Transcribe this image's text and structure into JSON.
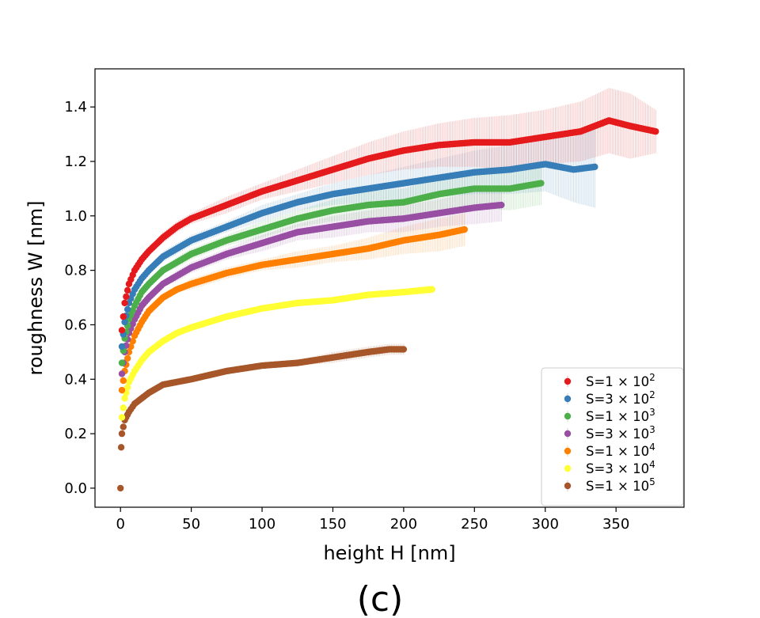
{
  "caption": "(c)",
  "chart_data": {
    "type": "scatter",
    "xlabel": "height H [nm]",
    "ylabel": "roughness W [nm]",
    "xlim": [
      -18,
      398
    ],
    "ylim": [
      -0.07,
      1.54
    ],
    "xticks": [
      0,
      50,
      100,
      150,
      200,
      250,
      300,
      350
    ],
    "yticks": [
      0.0,
      0.2,
      0.4,
      0.6,
      0.8,
      1.0,
      1.2,
      1.4
    ],
    "ytick_labels": [
      "0.0",
      "0.2",
      "0.4",
      "0.6",
      "0.8",
      "1.0",
      "1.2",
      "1.4"
    ],
    "grid": false,
    "error_bars": true,
    "legend_position": "lower right",
    "origin_point": [
      0,
      0.0
    ],
    "series": [
      {
        "name": "S=1×10²",
        "legend_base": "S=1",
        "legend_exp": "2",
        "color": "#e41a1c",
        "x": [
          1,
          3,
          6,
          10,
          15,
          20,
          30,
          40,
          50,
          75,
          100,
          125,
          150,
          175,
          200,
          225,
          250,
          275,
          300,
          325,
          345,
          360,
          378
        ],
        "y": [
          0.58,
          0.68,
          0.75,
          0.8,
          0.84,
          0.87,
          0.92,
          0.96,
          0.99,
          1.04,
          1.09,
          1.13,
          1.17,
          1.21,
          1.24,
          1.26,
          1.27,
          1.27,
          1.29,
          1.31,
          1.35,
          1.33,
          1.31
        ],
        "err": [
          0.01,
          0.01,
          0.01,
          0.01,
          0.01,
          0.01,
          0.02,
          0.02,
          0.02,
          0.03,
          0.03,
          0.04,
          0.05,
          0.06,
          0.07,
          0.08,
          0.09,
          0.1,
          0.1,
          0.11,
          0.12,
          0.12,
          0.08
        ]
      },
      {
        "name": "S=3×10²",
        "legend_base": "S=3",
        "legend_exp": "2",
        "color": "#377eb8",
        "x": [
          1,
          3,
          6,
          10,
          15,
          20,
          30,
          40,
          50,
          75,
          100,
          125,
          150,
          175,
          200,
          225,
          250,
          275,
          300,
          320,
          335
        ],
        "y": [
          0.52,
          0.61,
          0.68,
          0.73,
          0.77,
          0.8,
          0.85,
          0.88,
          0.91,
          0.96,
          1.01,
          1.05,
          1.08,
          1.1,
          1.12,
          1.14,
          1.16,
          1.17,
          1.19,
          1.17,
          1.18
        ],
        "err": [
          0.01,
          0.01,
          0.01,
          0.01,
          0.01,
          0.01,
          0.02,
          0.02,
          0.02,
          0.02,
          0.03,
          0.03,
          0.04,
          0.05,
          0.06,
          0.07,
          0.08,
          0.09,
          0.1,
          0.12,
          0.15
        ]
      },
      {
        "name": "S=1×10³",
        "legend_base": "S=1",
        "legend_exp": "3",
        "color": "#4daf4a",
        "x": [
          1,
          3,
          6,
          10,
          15,
          20,
          30,
          40,
          50,
          75,
          100,
          125,
          150,
          175,
          200,
          225,
          250,
          275,
          297
        ],
        "y": [
          0.46,
          0.55,
          0.62,
          0.67,
          0.72,
          0.75,
          0.8,
          0.83,
          0.86,
          0.91,
          0.95,
          0.99,
          1.02,
          1.04,
          1.05,
          1.08,
          1.1,
          1.1,
          1.12
        ],
        "err": [
          0.01,
          0.01,
          0.01,
          0.01,
          0.01,
          0.01,
          0.01,
          0.02,
          0.02,
          0.02,
          0.03,
          0.03,
          0.04,
          0.05,
          0.05,
          0.06,
          0.07,
          0.08,
          0.08
        ]
      },
      {
        "name": "S=3×10³",
        "legend_base": "S=3",
        "legend_exp": "3",
        "color": "#984ea3",
        "x": [
          1,
          3,
          6,
          10,
          15,
          20,
          30,
          40,
          50,
          75,
          100,
          125,
          150,
          175,
          200,
          225,
          250,
          269
        ],
        "y": [
          0.42,
          0.5,
          0.57,
          0.62,
          0.67,
          0.7,
          0.75,
          0.78,
          0.81,
          0.86,
          0.9,
          0.94,
          0.96,
          0.98,
          0.99,
          1.01,
          1.03,
          1.04
        ],
        "err": [
          0.01,
          0.01,
          0.01,
          0.01,
          0.01,
          0.01,
          0.01,
          0.02,
          0.02,
          0.02,
          0.03,
          0.03,
          0.04,
          0.04,
          0.05,
          0.05,
          0.06,
          0.06
        ]
      },
      {
        "name": "S=1×10⁴",
        "legend_base": "S=1",
        "legend_exp": "4",
        "color": "#ff7f00",
        "x": [
          1,
          3,
          6,
          10,
          15,
          20,
          30,
          40,
          50,
          75,
          100,
          125,
          150,
          175,
          200,
          225,
          243
        ],
        "y": [
          0.36,
          0.43,
          0.5,
          0.56,
          0.61,
          0.65,
          0.7,
          0.73,
          0.75,
          0.79,
          0.82,
          0.84,
          0.86,
          0.88,
          0.91,
          0.93,
          0.95
        ],
        "err": [
          0.01,
          0.01,
          0.01,
          0.01,
          0.01,
          0.01,
          0.01,
          0.01,
          0.02,
          0.02,
          0.02,
          0.03,
          0.03,
          0.04,
          0.05,
          0.06,
          0.06
        ]
      },
      {
        "name": "S=3×10⁴",
        "legend_base": "S=3",
        "legend_exp": "4",
        "color": "#ffff33",
        "x": [
          1,
          3,
          6,
          10,
          15,
          20,
          30,
          40,
          50,
          75,
          100,
          125,
          150,
          175,
          200,
          220
        ],
        "y": [
          0.26,
          0.33,
          0.39,
          0.43,
          0.47,
          0.5,
          0.54,
          0.57,
          0.59,
          0.63,
          0.66,
          0.68,
          0.69,
          0.71,
          0.72,
          0.73
        ],
        "err": [
          0.005,
          0.005,
          0.01,
          0.01,
          0.01,
          0.01,
          0.01,
          0.01,
          0.01,
          0.01,
          0.01,
          0.01,
          0.01,
          0.01,
          0.01,
          0.02
        ]
      },
      {
        "name": "S=1×10⁵",
        "legend_base": "S=1",
        "legend_exp": "5",
        "color": "#a65628",
        "x": [
          0.5,
          1,
          3,
          6,
          10,
          15,
          20,
          30,
          40,
          50,
          75,
          100,
          125,
          150,
          175,
          190,
          200
        ],
        "y": [
          0.15,
          0.2,
          0.25,
          0.28,
          0.31,
          0.33,
          0.35,
          0.38,
          0.39,
          0.4,
          0.43,
          0.45,
          0.46,
          0.48,
          0.5,
          0.51,
          0.51
        ],
        "err": [
          0.005,
          0.005,
          0.005,
          0.005,
          0.005,
          0.005,
          0.005,
          0.01,
          0.01,
          0.01,
          0.01,
          0.01,
          0.01,
          0.02,
          0.02,
          0.02,
          0.02
        ]
      }
    ]
  }
}
